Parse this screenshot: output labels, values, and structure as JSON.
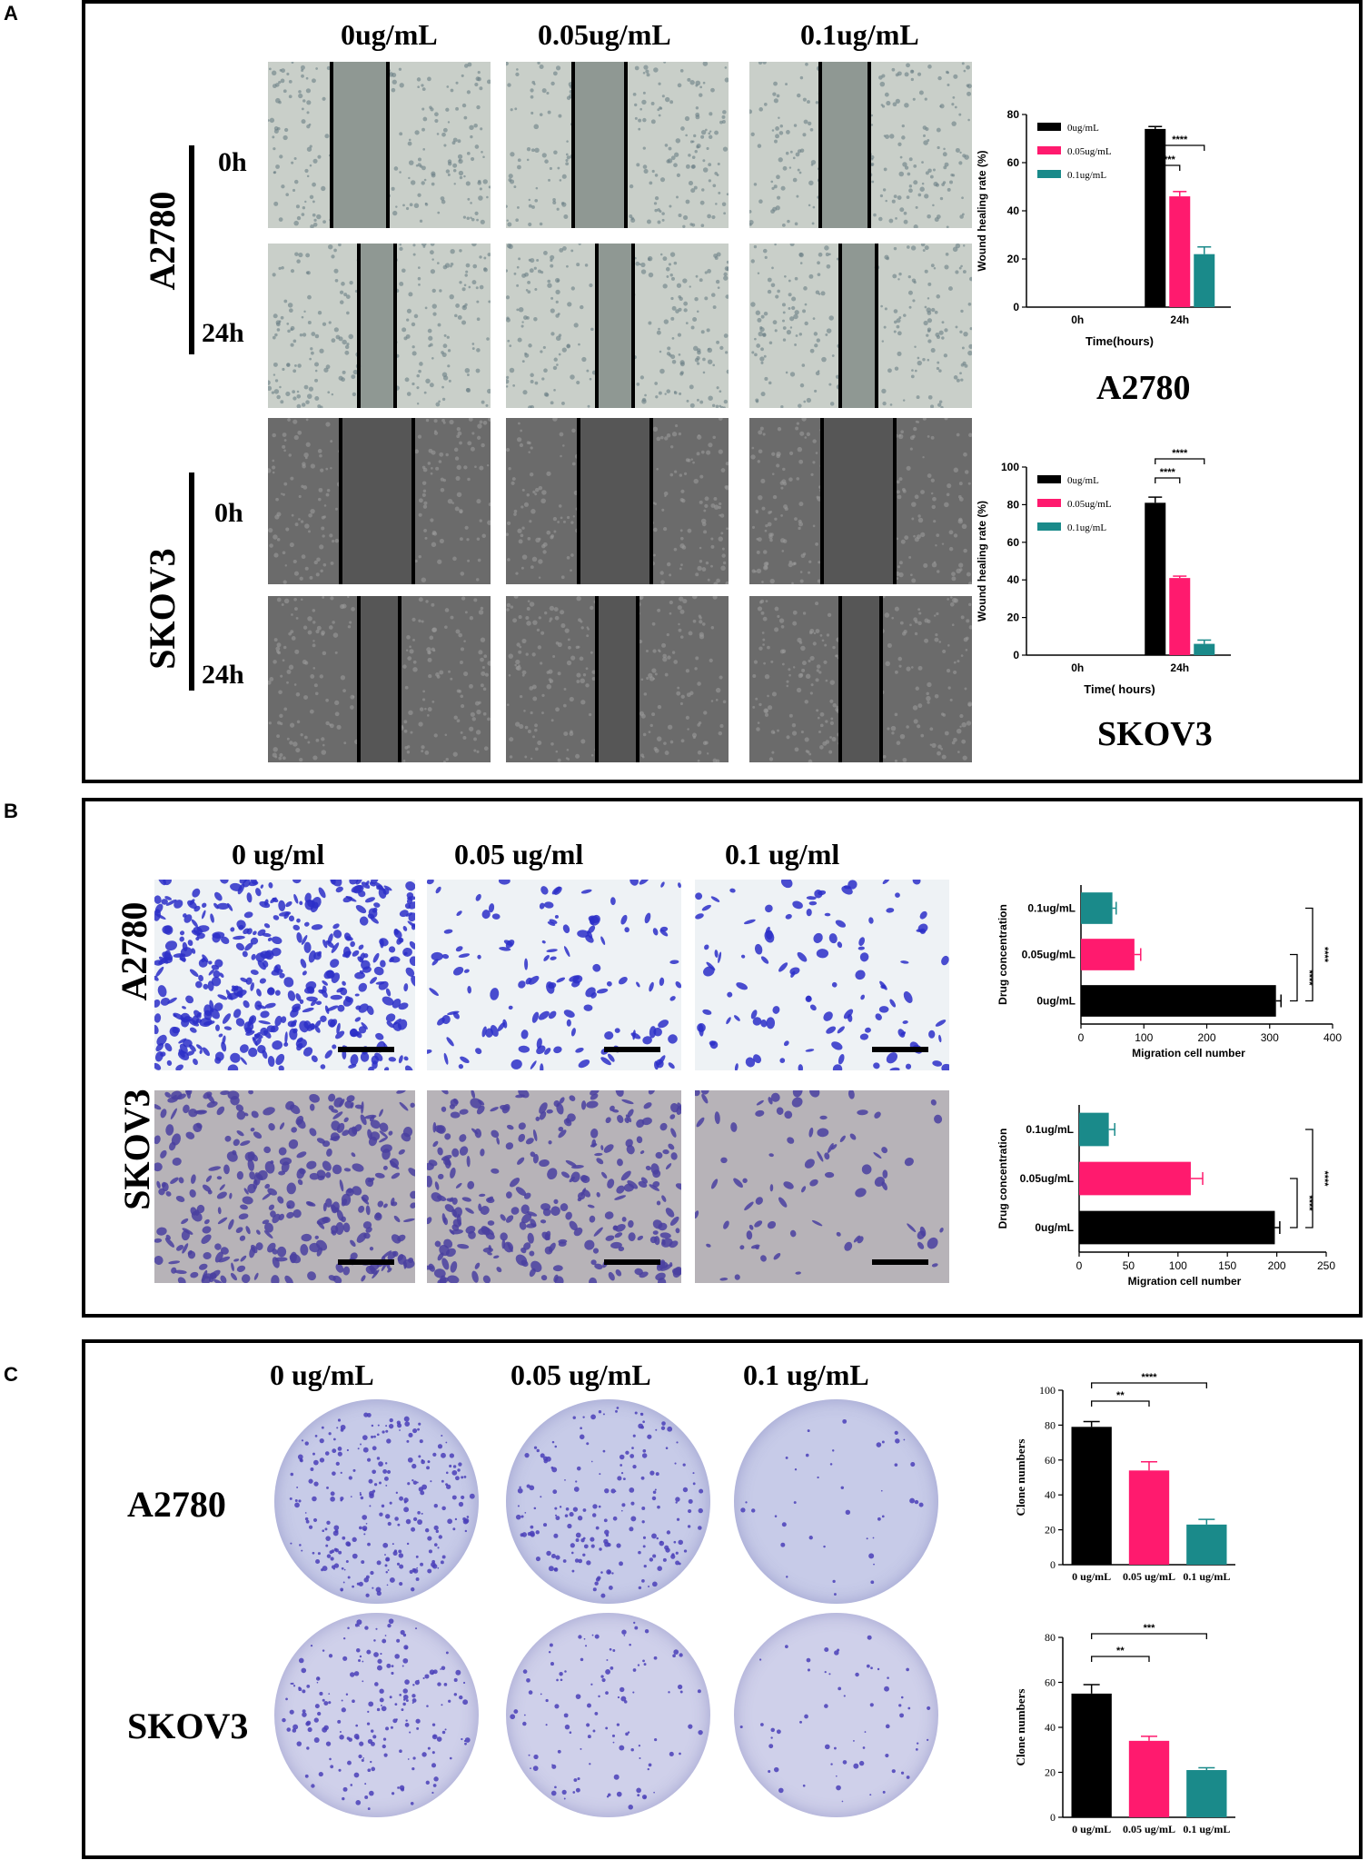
{
  "panels": {
    "a": {
      "letter": "A",
      "columns": [
        "0ug/mL",
        "0.05ug/mL",
        "0.1ug/mL"
      ],
      "cell_lines": [
        "A2780",
        "SKOV3"
      ],
      "times": [
        "0h",
        "24h"
      ],
      "colors": {
        "bg_a2780": "#c9cfc9",
        "bg_skov3": "#6b6b6b",
        "scratch_a2780": "#5f6b66",
        "scratch_skov3": "#454545",
        "gap_line": "#000000"
      }
    },
    "b": {
      "letter": "B",
      "columns": [
        "0 ug/ml",
        "0.05 ug/ml",
        "0.1 ug/ml"
      ],
      "cell_lines": [
        "A2780",
        "SKOV3"
      ],
      "colors": {
        "bg_a2780": "#eef2f5",
        "cell_a2780": "#2b2fc8",
        "bg_skov3": "#b7b3b8",
        "cell_skov3": "#4a3fa0",
        "scale": "#000000"
      }
    },
    "c": {
      "letter": "C",
      "columns": [
        "0 ug/mL",
        "0.05 ug/mL",
        "0.1 ug/mL"
      ],
      "cell_lines": [
        "A2780",
        "SKOV3"
      ],
      "colors": {
        "plate_a2780": "#c7cbe8",
        "plate_skov3": "#cfd0ea",
        "colony": "#4a3fb8"
      }
    }
  },
  "chart_data": [
    {
      "id": "wound-a2780",
      "type": "bar",
      "title": "A2780",
      "xlabel": "Time(hours)",
      "ylabel": "Wound healing rate (%)",
      "categories": [
        "0h",
        "24h"
      ],
      "ylim": [
        0,
        80
      ],
      "yticks": [
        0,
        20,
        40,
        60,
        80
      ],
      "series": [
        {
          "name": "0ug/mL",
          "color": "#000000",
          "values": [
            0,
            74
          ],
          "errors": [
            0,
            1
          ]
        },
        {
          "name": "0.05ug/mL",
          "color": "#ff1a6e",
          "values": [
            0,
            46
          ],
          "errors": [
            0,
            2
          ]
        },
        {
          "name": "0.1ug/mL",
          "color": "#1a8a8a",
          "values": [
            0,
            22
          ],
          "errors": [
            0,
            3
          ]
        }
      ],
      "annotations": [
        "****",
        "****"
      ],
      "legend": "top-left"
    },
    {
      "id": "wound-skov3",
      "type": "bar",
      "title": "SKOV3",
      "xlabel": "Time( hours)",
      "ylabel": "Wound healing rate (%)",
      "categories": [
        "0h",
        "24h"
      ],
      "ylim": [
        0,
        100
      ],
      "yticks": [
        0,
        20,
        40,
        60,
        80,
        100
      ],
      "series": [
        {
          "name": "0ug/mL",
          "color": "#000000",
          "values": [
            0,
            81
          ],
          "errors": [
            0,
            3
          ]
        },
        {
          "name": "0.05ug/mL",
          "color": "#ff1a6e",
          "values": [
            0,
            41
          ],
          "errors": [
            0,
            1
          ]
        },
        {
          "name": "0.1ug/mL",
          "color": "#1a8a8a",
          "values": [
            0,
            6
          ],
          "errors": [
            0,
            2
          ]
        }
      ],
      "annotations": [
        "****",
        "****"
      ],
      "legend": "top-left"
    },
    {
      "id": "migration-a2780",
      "type": "bar",
      "orientation": "horizontal",
      "xlabel": "Migration cell number",
      "ylabel": "Drug concentration",
      "categories": [
        "0.1ug/mL",
        "0.05ug/mL",
        "0ug/mL"
      ],
      "values": [
        50,
        85,
        310
      ],
      "errors": [
        6,
        10,
        8
      ],
      "colors": [
        "#1a8a8a",
        "#ff1a6e",
        "#000000"
      ],
      "xlim": [
        0,
        400
      ],
      "xticks": [
        0,
        100,
        200,
        300,
        400
      ],
      "annotations": [
        "****",
        "****"
      ]
    },
    {
      "id": "migration-skov3",
      "type": "bar",
      "orientation": "horizontal",
      "xlabel": "Migration cell number",
      "ylabel": "Drug concentration",
      "categories": [
        "0.1ug/mL",
        "0.05ug/mL",
        "0ug/mL"
      ],
      "values": [
        30,
        113,
        198
      ],
      "errors": [
        6,
        12,
        5
      ],
      "colors": [
        "#1a8a8a",
        "#ff1a6e",
        "#000000"
      ],
      "xlim": [
        0,
        250
      ],
      "xticks": [
        0,
        50,
        100,
        150,
        200,
        250
      ],
      "annotations": [
        "****",
        "****"
      ]
    },
    {
      "id": "clone-a2780",
      "type": "bar",
      "ylabel": "Clone numbers",
      "categories": [
        "0 ug/mL",
        "0.05 ug/mL",
        "0.1 ug/mL"
      ],
      "values": [
        79,
        54,
        23
      ],
      "errors": [
        3,
        5,
        3
      ],
      "colors": [
        "#000000",
        "#ff1a6e",
        "#1a8a8a"
      ],
      "ylim": [
        0,
        100
      ],
      "yticks": [
        0,
        20,
        40,
        60,
        80,
        100
      ],
      "annotations": [
        "**",
        "****"
      ]
    },
    {
      "id": "clone-skov3",
      "type": "bar",
      "ylabel": "Clone numbers",
      "categories": [
        "0 ug/mL",
        "0.05 ug/mL",
        "0.1 ug/mL"
      ],
      "values": [
        55,
        34,
        21
      ],
      "errors": [
        4,
        2,
        1
      ],
      "colors": [
        "#000000",
        "#ff1a6e",
        "#1a8a8a"
      ],
      "ylim": [
        0,
        80
      ],
      "yticks": [
        0,
        20,
        40,
        60,
        80
      ],
      "annotations": [
        "**",
        "***"
      ]
    }
  ]
}
